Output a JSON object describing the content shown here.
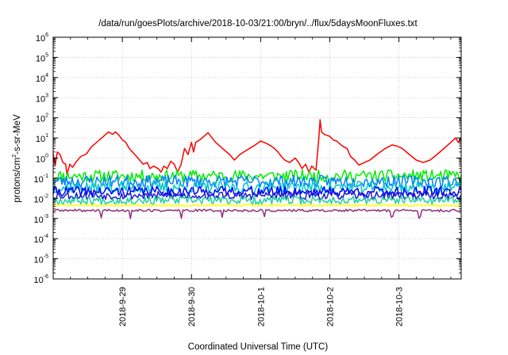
{
  "chart_data": {
    "type": "line",
    "title": "/data/run/goesPlots/archive/2018-10-03/21:00/bryn/../flux/5daysMoonFluxes.txt",
    "xlabel": "Coordinated Universal Time (UTC)",
    "ylabel": {
      "pre": "protons/cm",
      "sup": "2",
      "post": "-s-sr-MeV"
    },
    "yscale": "log",
    "ylim": [
      1e-06,
      1000000.0
    ],
    "xlim": [
      0.0,
      5.9
    ],
    "x_unit": "days since 2018-09-28 00:00 UTC",
    "grid": true,
    "y_ticks": [
      {
        "exp": -6,
        "base": "10",
        "sup": "-6"
      },
      {
        "exp": -5,
        "base": "10",
        "sup": "-5"
      },
      {
        "exp": -4,
        "base": "10",
        "sup": "-4"
      },
      {
        "exp": -3,
        "base": "10",
        "sup": "-3"
      },
      {
        "exp": -2,
        "base": "10",
        "sup": "-2"
      },
      {
        "exp": -1,
        "base": "10",
        "sup": "-1"
      },
      {
        "exp": 0,
        "base": "10",
        "sup": "0"
      },
      {
        "exp": 1,
        "base": "10",
        "sup": "1"
      },
      {
        "exp": 2,
        "base": "10",
        "sup": "2"
      },
      {
        "exp": 3,
        "base": "10",
        "sup": "3"
      },
      {
        "exp": 4,
        "base": "10",
        "sup": "4"
      },
      {
        "exp": 5,
        "base": "10",
        "sup": "5"
      },
      {
        "exp": 6,
        "base": "10",
        "sup": "6"
      }
    ],
    "x_ticks": [
      {
        "x": 1,
        "label": "2018-9-29"
      },
      {
        "x": 2,
        "label": "2018-9-30"
      },
      {
        "x": 3,
        "label": "2018-10-1"
      },
      {
        "x": 4,
        "label": "2018-10-2"
      },
      {
        "x": 5,
        "label": "2018-10-3"
      }
    ],
    "series": [
      {
        "color": "#ff0000",
        "values": [
          [
            0.0,
            1.6
          ],
          [
            0.03,
            0.45
          ],
          [
            0.06,
            2.0
          ],
          [
            0.1,
            1.5
          ],
          [
            0.14,
            0.6
          ],
          [
            0.18,
            0.5
          ],
          [
            0.2,
            0.15
          ],
          [
            0.24,
            0.5
          ],
          [
            0.28,
            0.35
          ],
          [
            0.34,
            0.7
          ],
          [
            0.4,
            1.2
          ],
          [
            0.48,
            1.6
          ],
          [
            0.55,
            3.5
          ],
          [
            0.65,
            7
          ],
          [
            0.75,
            14
          ],
          [
            0.8,
            20
          ],
          [
            0.86,
            15
          ],
          [
            0.9,
            20
          ],
          [
            0.95,
            14
          ],
          [
            1.0,
            8
          ],
          [
            1.05,
            6
          ],
          [
            1.1,
            3
          ],
          [
            1.18,
            1.5
          ],
          [
            1.25,
            0.8
          ],
          [
            1.3,
            0.5
          ],
          [
            1.36,
            0.6
          ],
          [
            1.4,
            0.3
          ],
          [
            1.45,
            0.4
          ],
          [
            1.52,
            0.3
          ],
          [
            1.56,
            0.2
          ],
          [
            1.6,
            0.4
          ],
          [
            1.65,
            0.3
          ],
          [
            1.7,
            0.7
          ],
          [
            1.75,
            0.5
          ],
          [
            1.8,
            0.2
          ],
          [
            1.85,
            0.5
          ],
          [
            1.9,
            3
          ],
          [
            1.95,
            1.5
          ],
          [
            2.0,
            6
          ],
          [
            2.03,
            2
          ],
          [
            2.06,
            6
          ],
          [
            2.12,
            8
          ],
          [
            2.18,
            12
          ],
          [
            2.24,
            18
          ],
          [
            2.28,
            12
          ],
          [
            2.35,
            6
          ],
          [
            2.45,
            3
          ],
          [
            2.55,
            1.5
          ],
          [
            2.62,
            0.8
          ],
          [
            2.7,
            1.5
          ],
          [
            2.8,
            2.5
          ],
          [
            2.9,
            4
          ],
          [
            3.0,
            7
          ],
          [
            3.05,
            6
          ],
          [
            3.1,
            5
          ],
          [
            3.15,
            4
          ],
          [
            3.2,
            3
          ],
          [
            3.25,
            2
          ],
          [
            3.3,
            1.2
          ],
          [
            3.35,
            0.8
          ],
          [
            3.42,
            0.6
          ],
          [
            3.5,
            1.0
          ],
          [
            3.55,
            0.6
          ],
          [
            3.6,
            0.3
          ],
          [
            3.65,
            0.5
          ],
          [
            3.7,
            0.2
          ],
          [
            3.74,
            0.4
          ],
          [
            3.8,
            0.25
          ],
          [
            3.84,
            8
          ],
          [
            3.86,
            80
          ],
          [
            3.88,
            20
          ],
          [
            3.92,
            15
          ],
          [
            4.0,
            12
          ],
          [
            4.05,
            8
          ],
          [
            4.1,
            7
          ],
          [
            4.18,
            4
          ],
          [
            4.25,
            3
          ],
          [
            4.3,
            1.2
          ],
          [
            4.36,
            0.8
          ],
          [
            4.42,
            0.45
          ],
          [
            4.5,
            0.6
          ],
          [
            4.58,
            0.8
          ],
          [
            4.68,
            1.5
          ],
          [
            4.8,
            3
          ],
          [
            4.9,
            4.5
          ],
          [
            4.97,
            4
          ],
          [
            5.05,
            3
          ],
          [
            5.15,
            1.5
          ],
          [
            5.25,
            0.8
          ],
          [
            5.35,
            0.6
          ],
          [
            5.45,
            0.8
          ],
          [
            5.55,
            1.5
          ],
          [
            5.65,
            3
          ],
          [
            5.75,
            6
          ],
          [
            5.82,
            10
          ],
          [
            5.86,
            6
          ],
          [
            5.9,
            10
          ]
        ]
      },
      {
        "color": "#00ee00",
        "base": 0.13,
        "amp": 0.3,
        "seed": 11
      },
      {
        "color": "#0080ff",
        "base": 0.07,
        "amp": 0.3,
        "seed": 23
      },
      {
        "color": "#00c8c8",
        "base": 0.035,
        "amp": 0.3,
        "seed": 37
      },
      {
        "color": "#0000ff",
        "base": 0.022,
        "amp": 0.25,
        "seed": 41
      },
      {
        "color": "#1e1ecc",
        "base": 0.014,
        "amp": 0.2,
        "seed": 53
      },
      {
        "color": "#20d0a0",
        "base": 0.008,
        "amp": 0.2,
        "seed": 67
      },
      {
        "color": "#ffff00",
        "base": 0.0045,
        "amp": 0.05,
        "seed": 71
      },
      {
        "color": "#903080",
        "base": 0.0025,
        "amp": 0.06,
        "seed": 89,
        "dips": [
          0.7,
          1.12,
          1.85,
          2.45,
          3.05,
          4.9,
          5.3
        ]
      }
    ]
  }
}
